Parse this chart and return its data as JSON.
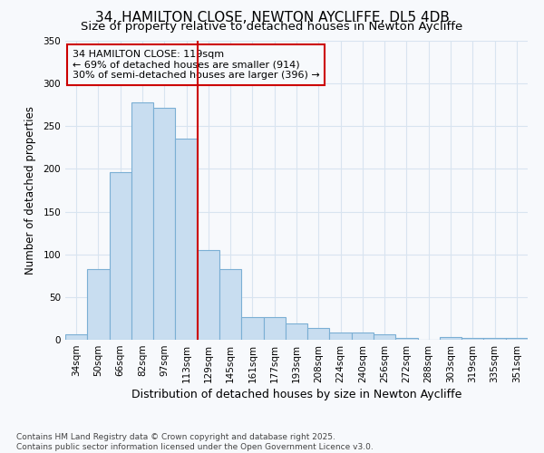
{
  "title1": "34, HAMILTON CLOSE, NEWTON AYCLIFFE, DL5 4DB",
  "title2": "Size of property relative to detached houses in Newton Aycliffe",
  "xlabel": "Distribution of detached houses by size in Newton Aycliffe",
  "ylabel": "Number of detached properties",
  "categories": [
    "34sqm",
    "50sqm",
    "66sqm",
    "82sqm",
    "97sqm",
    "113sqm",
    "129sqm",
    "145sqm",
    "161sqm",
    "177sqm",
    "193sqm",
    "208sqm",
    "224sqm",
    "240sqm",
    "256sqm",
    "272sqm",
    "288sqm",
    "303sqm",
    "319sqm",
    "335sqm",
    "351sqm"
  ],
  "values": [
    6,
    83,
    196,
    278,
    272,
    235,
    105,
    83,
    27,
    27,
    19,
    14,
    9,
    8,
    6,
    2,
    0,
    3,
    2,
    2,
    2
  ],
  "bar_color": "#c8ddf0",
  "bar_edge_color": "#7bafd4",
  "vline_x_index": 5,
  "vline_color": "#cc0000",
  "ylim": [
    0,
    350
  ],
  "yticks": [
    0,
    50,
    100,
    150,
    200,
    250,
    300,
    350
  ],
  "annotation_line1": "34 HAMILTON CLOSE: 119sqm",
  "annotation_line2": "← 69% of detached houses are smaller (914)",
  "annotation_line3": "30% of semi-detached houses are larger (396) →",
  "footer1": "Contains HM Land Registry data © Crown copyright and database right 2025.",
  "footer2": "Contains public sector information licensed under the Open Government Licence v3.0.",
  "bg_color": "#f7f9fc",
  "grid_color": "#d8e4f0",
  "title1_fontsize": 11,
  "title2_fontsize": 9.5,
  "xlabel_fontsize": 9,
  "ylabel_fontsize": 8.5,
  "tick_fontsize": 7.5,
  "annot_fontsize": 8,
  "footer_fontsize": 6.5
}
